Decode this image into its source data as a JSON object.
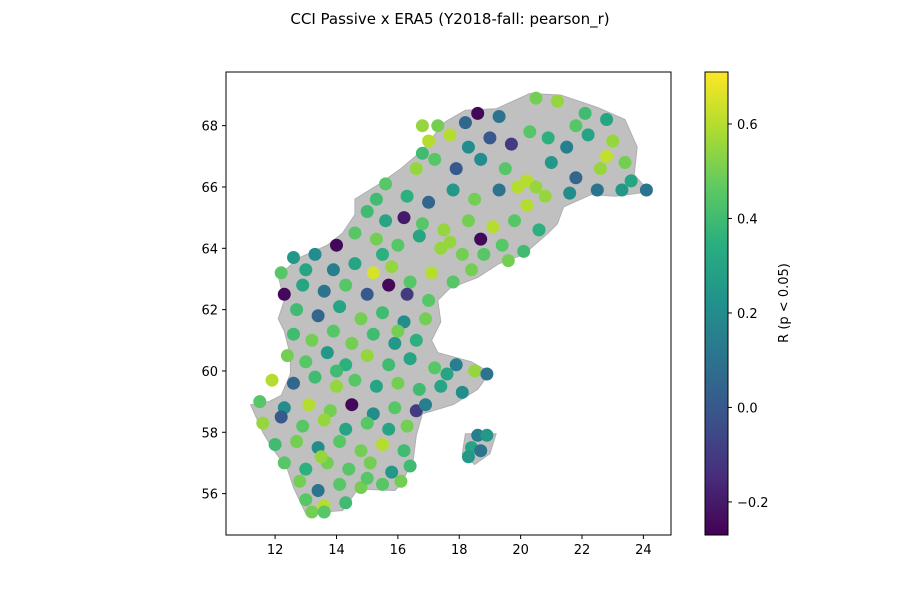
{
  "chart_data": {
    "type": "scatter",
    "title": "CCI Passive x ERA5 (Y2018-fall: pearson_r)",
    "xlim": [
      10.4,
      24.9
    ],
    "ylim": [
      54.65,
      69.75
    ],
    "x_ticks": [
      12,
      14,
      16,
      18,
      20,
      22,
      24
    ],
    "y_ticks": [
      56,
      58,
      60,
      62,
      64,
      66,
      68
    ],
    "grid": false,
    "colorbar": {
      "label": "R (p < 0.05)",
      "colormap": "viridis",
      "vmin": -0.27,
      "vmax": 0.71,
      "ticks": [
        -0.2,
        0.0,
        0.2,
        0.4,
        0.6
      ],
      "tick_labels": [
        "−0.2",
        "0.0",
        "0.2",
        "0.4",
        "0.6"
      ]
    },
    "land_color": "#c0c0c0",
    "land_outline": [
      [
        20.3,
        69.05
      ],
      [
        21.3,
        69.0
      ],
      [
        22.5,
        68.6
      ],
      [
        23.4,
        68.2
      ],
      [
        23.8,
        67.3
      ],
      [
        23.7,
        66.4
      ],
      [
        24.2,
        65.85
      ],
      [
        23.1,
        65.7
      ],
      [
        22.3,
        65.75
      ],
      [
        21.4,
        65.35
      ],
      [
        21.2,
        64.8
      ],
      [
        20.9,
        64.5
      ],
      [
        20.1,
        63.8
      ],
      [
        19.3,
        63.5
      ],
      [
        18.6,
        63.05
      ],
      [
        17.7,
        62.7
      ],
      [
        17.3,
        62.3
      ],
      [
        17.4,
        61.6
      ],
      [
        17.1,
        61.0
      ],
      [
        17.3,
        60.6
      ],
      [
        18.4,
        60.3
      ],
      [
        19.0,
        59.95
      ],
      [
        18.6,
        59.4
      ],
      [
        17.8,
        58.9
      ],
      [
        16.8,
        58.6
      ],
      [
        16.6,
        57.9
      ],
      [
        16.5,
        57.1
      ],
      [
        16.1,
        56.3
      ],
      [
        15.9,
        56.1
      ],
      [
        14.7,
        56.15
      ],
      [
        14.2,
        55.45
      ],
      [
        13.0,
        55.35
      ],
      [
        12.6,
        56.2
      ],
      [
        12.4,
        56.8
      ],
      [
        11.9,
        57.5
      ],
      [
        11.6,
        58.0
      ],
      [
        11.2,
        58.9
      ],
      [
        11.8,
        59.0
      ],
      [
        12.2,
        59.2
      ],
      [
        12.5,
        59.9
      ],
      [
        12.5,
        60.5
      ],
      [
        12.3,
        61.3
      ],
      [
        12.1,
        61.7
      ],
      [
        12.3,
        62.3
      ],
      [
        12.1,
        63.1
      ],
      [
        12.8,
        63.7
      ],
      [
        13.7,
        64.1
      ],
      [
        14.2,
        64.5
      ],
      [
        14.6,
        65.1
      ],
      [
        14.6,
        65.6
      ],
      [
        15.4,
        66.1
      ],
      [
        16.1,
        66.6
      ],
      [
        16.8,
        67.2
      ],
      [
        17.5,
        68.1
      ],
      [
        18.2,
        68.5
      ],
      [
        19.2,
        68.55
      ],
      [
        20.3,
        69.05
      ]
    ],
    "island": [
      [
        18.2,
        57.95
      ],
      [
        19.2,
        57.95
      ],
      [
        19.0,
        57.3
      ],
      [
        18.5,
        56.95
      ],
      [
        18.1,
        57.3
      ],
      [
        18.2,
        57.95
      ]
    ],
    "series": [
      {
        "values": [
          [
            20.5,
            68.9,
            0.5
          ],
          [
            21.2,
            68.8,
            0.55
          ],
          [
            22.1,
            68.4,
            0.4
          ],
          [
            22.8,
            68.2,
            0.3
          ],
          [
            18.6,
            68.4,
            -0.25
          ],
          [
            19.3,
            68.3,
            0.1
          ],
          [
            18.2,
            68.1,
            0.05
          ],
          [
            17.7,
            67.7,
            0.6
          ],
          [
            18.3,
            67.3,
            0.2
          ],
          [
            19.0,
            67.6,
            0.0
          ],
          [
            19.7,
            67.4,
            -0.1
          ],
          [
            20.3,
            67.8,
            0.45
          ],
          [
            20.9,
            67.6,
            0.35
          ],
          [
            21.5,
            67.3,
            0.15
          ],
          [
            22.2,
            67.7,
            0.3
          ],
          [
            22.8,
            67.0,
            0.62
          ],
          [
            23.4,
            66.8,
            0.5
          ],
          [
            23.6,
            66.2,
            0.3
          ],
          [
            22.6,
            66.6,
            0.55
          ],
          [
            21.8,
            66.3,
            0.05
          ],
          [
            21.0,
            66.8,
            0.25
          ],
          [
            20.2,
            66.2,
            0.6
          ],
          [
            19.5,
            66.6,
            0.45
          ],
          [
            18.7,
            66.9,
            0.2
          ],
          [
            17.9,
            66.6,
            0.0
          ],
          [
            17.2,
            66.9,
            0.45
          ],
          [
            16.6,
            66.6,
            0.55
          ],
          [
            15.6,
            66.1,
            0.45
          ],
          [
            16.3,
            65.7,
            0.35
          ],
          [
            17.0,
            65.5,
            0.05
          ],
          [
            17.8,
            65.9,
            0.25
          ],
          [
            18.5,
            65.6,
            0.5
          ],
          [
            19.3,
            65.9,
            0.1
          ],
          [
            20.2,
            65.4,
            0.6
          ],
          [
            20.8,
            65.7,
            0.55
          ],
          [
            21.6,
            65.8,
            0.2
          ],
          [
            22.5,
            65.9,
            0.1
          ],
          [
            23.3,
            65.9,
            0.25
          ],
          [
            24.1,
            65.9,
            0.1
          ],
          [
            15.0,
            65.2,
            0.4
          ],
          [
            15.6,
            64.9,
            0.3
          ],
          [
            16.2,
            65.0,
            -0.2
          ],
          [
            16.8,
            64.8,
            0.45
          ],
          [
            17.5,
            64.6,
            0.55
          ],
          [
            18.3,
            64.9,
            0.5
          ],
          [
            19.1,
            64.7,
            0.6
          ],
          [
            19.8,
            64.9,
            0.45
          ],
          [
            20.6,
            64.6,
            0.35
          ],
          [
            14.6,
            64.5,
            0.45
          ],
          [
            15.3,
            64.3,
            0.5
          ],
          [
            16.0,
            64.1,
            0.45
          ],
          [
            16.7,
            64.4,
            0.3
          ],
          [
            17.4,
            64.0,
            0.55
          ],
          [
            18.1,
            63.8,
            0.5
          ],
          [
            18.7,
            64.3,
            -0.25
          ],
          [
            19.4,
            64.1,
            0.45
          ],
          [
            20.1,
            63.9,
            0.4
          ],
          [
            14.0,
            64.1,
            -0.25
          ],
          [
            13.3,
            63.8,
            0.2
          ],
          [
            12.6,
            63.7,
            0.25
          ],
          [
            13.9,
            63.3,
            0.15
          ],
          [
            14.6,
            63.5,
            0.3
          ],
          [
            15.2,
            63.2,
            0.65
          ],
          [
            15.8,
            63.4,
            0.55
          ],
          [
            16.4,
            62.9,
            0.45
          ],
          [
            17.1,
            63.2,
            0.6
          ],
          [
            17.8,
            62.9,
            0.45
          ],
          [
            18.4,
            63.3,
            0.5
          ],
          [
            12.2,
            63.2,
            0.45
          ],
          [
            12.9,
            62.8,
            0.3
          ],
          [
            13.6,
            62.6,
            0.1
          ],
          [
            14.3,
            62.8,
            0.45
          ],
          [
            15.0,
            62.5,
            0.0
          ],
          [
            15.7,
            62.8,
            -0.25
          ],
          [
            16.3,
            62.5,
            -0.1
          ],
          [
            17.0,
            62.3,
            0.45
          ],
          [
            12.3,
            62.5,
            -0.25
          ],
          [
            12.7,
            62.0,
            0.4
          ],
          [
            13.4,
            61.8,
            0.05
          ],
          [
            14.1,
            62.1,
            0.3
          ],
          [
            14.8,
            61.7,
            0.5
          ],
          [
            15.5,
            61.9,
            0.4
          ],
          [
            16.2,
            61.6,
            0.2
          ],
          [
            16.9,
            61.7,
            0.5
          ],
          [
            12.6,
            61.2,
            0.4
          ],
          [
            13.2,
            61.0,
            0.5
          ],
          [
            13.9,
            61.3,
            0.45
          ],
          [
            14.5,
            60.9,
            0.5
          ],
          [
            15.2,
            61.2,
            0.4
          ],
          [
            15.9,
            60.9,
            0.25
          ],
          [
            16.6,
            61.0,
            0.35
          ],
          [
            12.4,
            60.5,
            0.5
          ],
          [
            13.0,
            60.3,
            0.45
          ],
          [
            13.7,
            60.6,
            0.25
          ],
          [
            14.3,
            60.2,
            0.35
          ],
          [
            15.0,
            60.5,
            0.55
          ],
          [
            15.7,
            60.2,
            0.4
          ],
          [
            16.4,
            60.4,
            0.3
          ],
          [
            17.2,
            60.1,
            0.45
          ],
          [
            17.9,
            60.2,
            0.15
          ],
          [
            18.5,
            60.0,
            0.55
          ],
          [
            18.9,
            59.9,
            0.1
          ],
          [
            11.9,
            59.7,
            0.6
          ],
          [
            12.6,
            59.6,
            0.05
          ],
          [
            13.3,
            59.8,
            0.4
          ],
          [
            14.0,
            59.5,
            0.55
          ],
          [
            14.6,
            59.7,
            0.45
          ],
          [
            15.3,
            59.5,
            0.3
          ],
          [
            16.0,
            59.6,
            0.5
          ],
          [
            16.7,
            59.4,
            0.4
          ],
          [
            17.4,
            59.5,
            0.3
          ],
          [
            18.1,
            59.3,
            0.2
          ],
          [
            11.5,
            59.0,
            0.45
          ],
          [
            12.3,
            58.8,
            0.2
          ],
          [
            13.1,
            58.9,
            0.6
          ],
          [
            13.8,
            58.7,
            0.5
          ],
          [
            14.5,
            58.9,
            -0.25
          ],
          [
            15.2,
            58.6,
            0.2
          ],
          [
            15.9,
            58.8,
            0.45
          ],
          [
            16.6,
            58.7,
            -0.1
          ],
          [
            11.6,
            58.3,
            0.55
          ],
          [
            12.2,
            58.5,
            0.0
          ],
          [
            12.9,
            58.2,
            0.45
          ],
          [
            13.6,
            58.4,
            0.55
          ],
          [
            14.3,
            58.1,
            0.3
          ],
          [
            15.0,
            58.3,
            0.45
          ],
          [
            15.7,
            58.1,
            0.3
          ],
          [
            16.3,
            58.2,
            0.5
          ],
          [
            12.0,
            57.6,
            0.4
          ],
          [
            12.7,
            57.7,
            0.5
          ],
          [
            13.4,
            57.5,
            0.2
          ],
          [
            14.1,
            57.7,
            0.45
          ],
          [
            14.8,
            57.4,
            0.5
          ],
          [
            15.5,
            57.6,
            0.6
          ],
          [
            16.2,
            57.4,
            0.4
          ],
          [
            12.3,
            57.0,
            0.45
          ],
          [
            13.0,
            56.8,
            0.35
          ],
          [
            13.7,
            57.0,
            0.5
          ],
          [
            14.4,
            56.8,
            0.45
          ],
          [
            15.1,
            57.0,
            0.5
          ],
          [
            15.8,
            56.7,
            0.25
          ],
          [
            16.4,
            56.9,
            0.4
          ],
          [
            12.8,
            56.4,
            0.5
          ],
          [
            13.4,
            56.1,
            0.1
          ],
          [
            14.1,
            56.3,
            0.45
          ],
          [
            14.8,
            56.2,
            0.5
          ],
          [
            15.5,
            56.3,
            0.45
          ],
          [
            16.1,
            56.4,
            0.5
          ],
          [
            13.0,
            55.8,
            0.45
          ],
          [
            13.6,
            55.6,
            0.6
          ],
          [
            14.3,
            55.7,
            0.4
          ],
          [
            13.2,
            55.4,
            0.5
          ],
          [
            13.6,
            55.4,
            0.45
          ],
          [
            18.6,
            57.9,
            0.15
          ],
          [
            18.9,
            57.9,
            0.25
          ],
          [
            18.4,
            57.5,
            0.3
          ],
          [
            18.7,
            57.4,
            0.1
          ],
          [
            18.3,
            57.2,
            0.25
          ],
          [
            16.8,
            68.0,
            0.55
          ],
          [
            17.3,
            68.0,
            0.5
          ],
          [
            17.0,
            67.5,
            0.6
          ],
          [
            16.8,
            67.1,
            0.4
          ],
          [
            21.8,
            68.0,
            0.45
          ],
          [
            23.0,
            67.5,
            0.55
          ],
          [
            19.9,
            66.0,
            0.6
          ],
          [
            20.5,
            66.0,
            0.55
          ],
          [
            15.3,
            65.6,
            0.4
          ],
          [
            17.7,
            64.2,
            0.55
          ],
          [
            18.8,
            63.8,
            0.45
          ],
          [
            19.6,
            63.6,
            0.5
          ],
          [
            13.0,
            63.3,
            0.3
          ],
          [
            15.5,
            63.8,
            0.35
          ],
          [
            16.0,
            61.3,
            0.5
          ],
          [
            14.0,
            60.0,
            0.4
          ],
          [
            17.6,
            59.9,
            0.3
          ],
          [
            16.9,
            58.9,
            0.15
          ],
          [
            13.5,
            57.2,
            0.55
          ],
          [
            15.0,
            56.5,
            0.45
          ]
        ]
      }
    ]
  }
}
